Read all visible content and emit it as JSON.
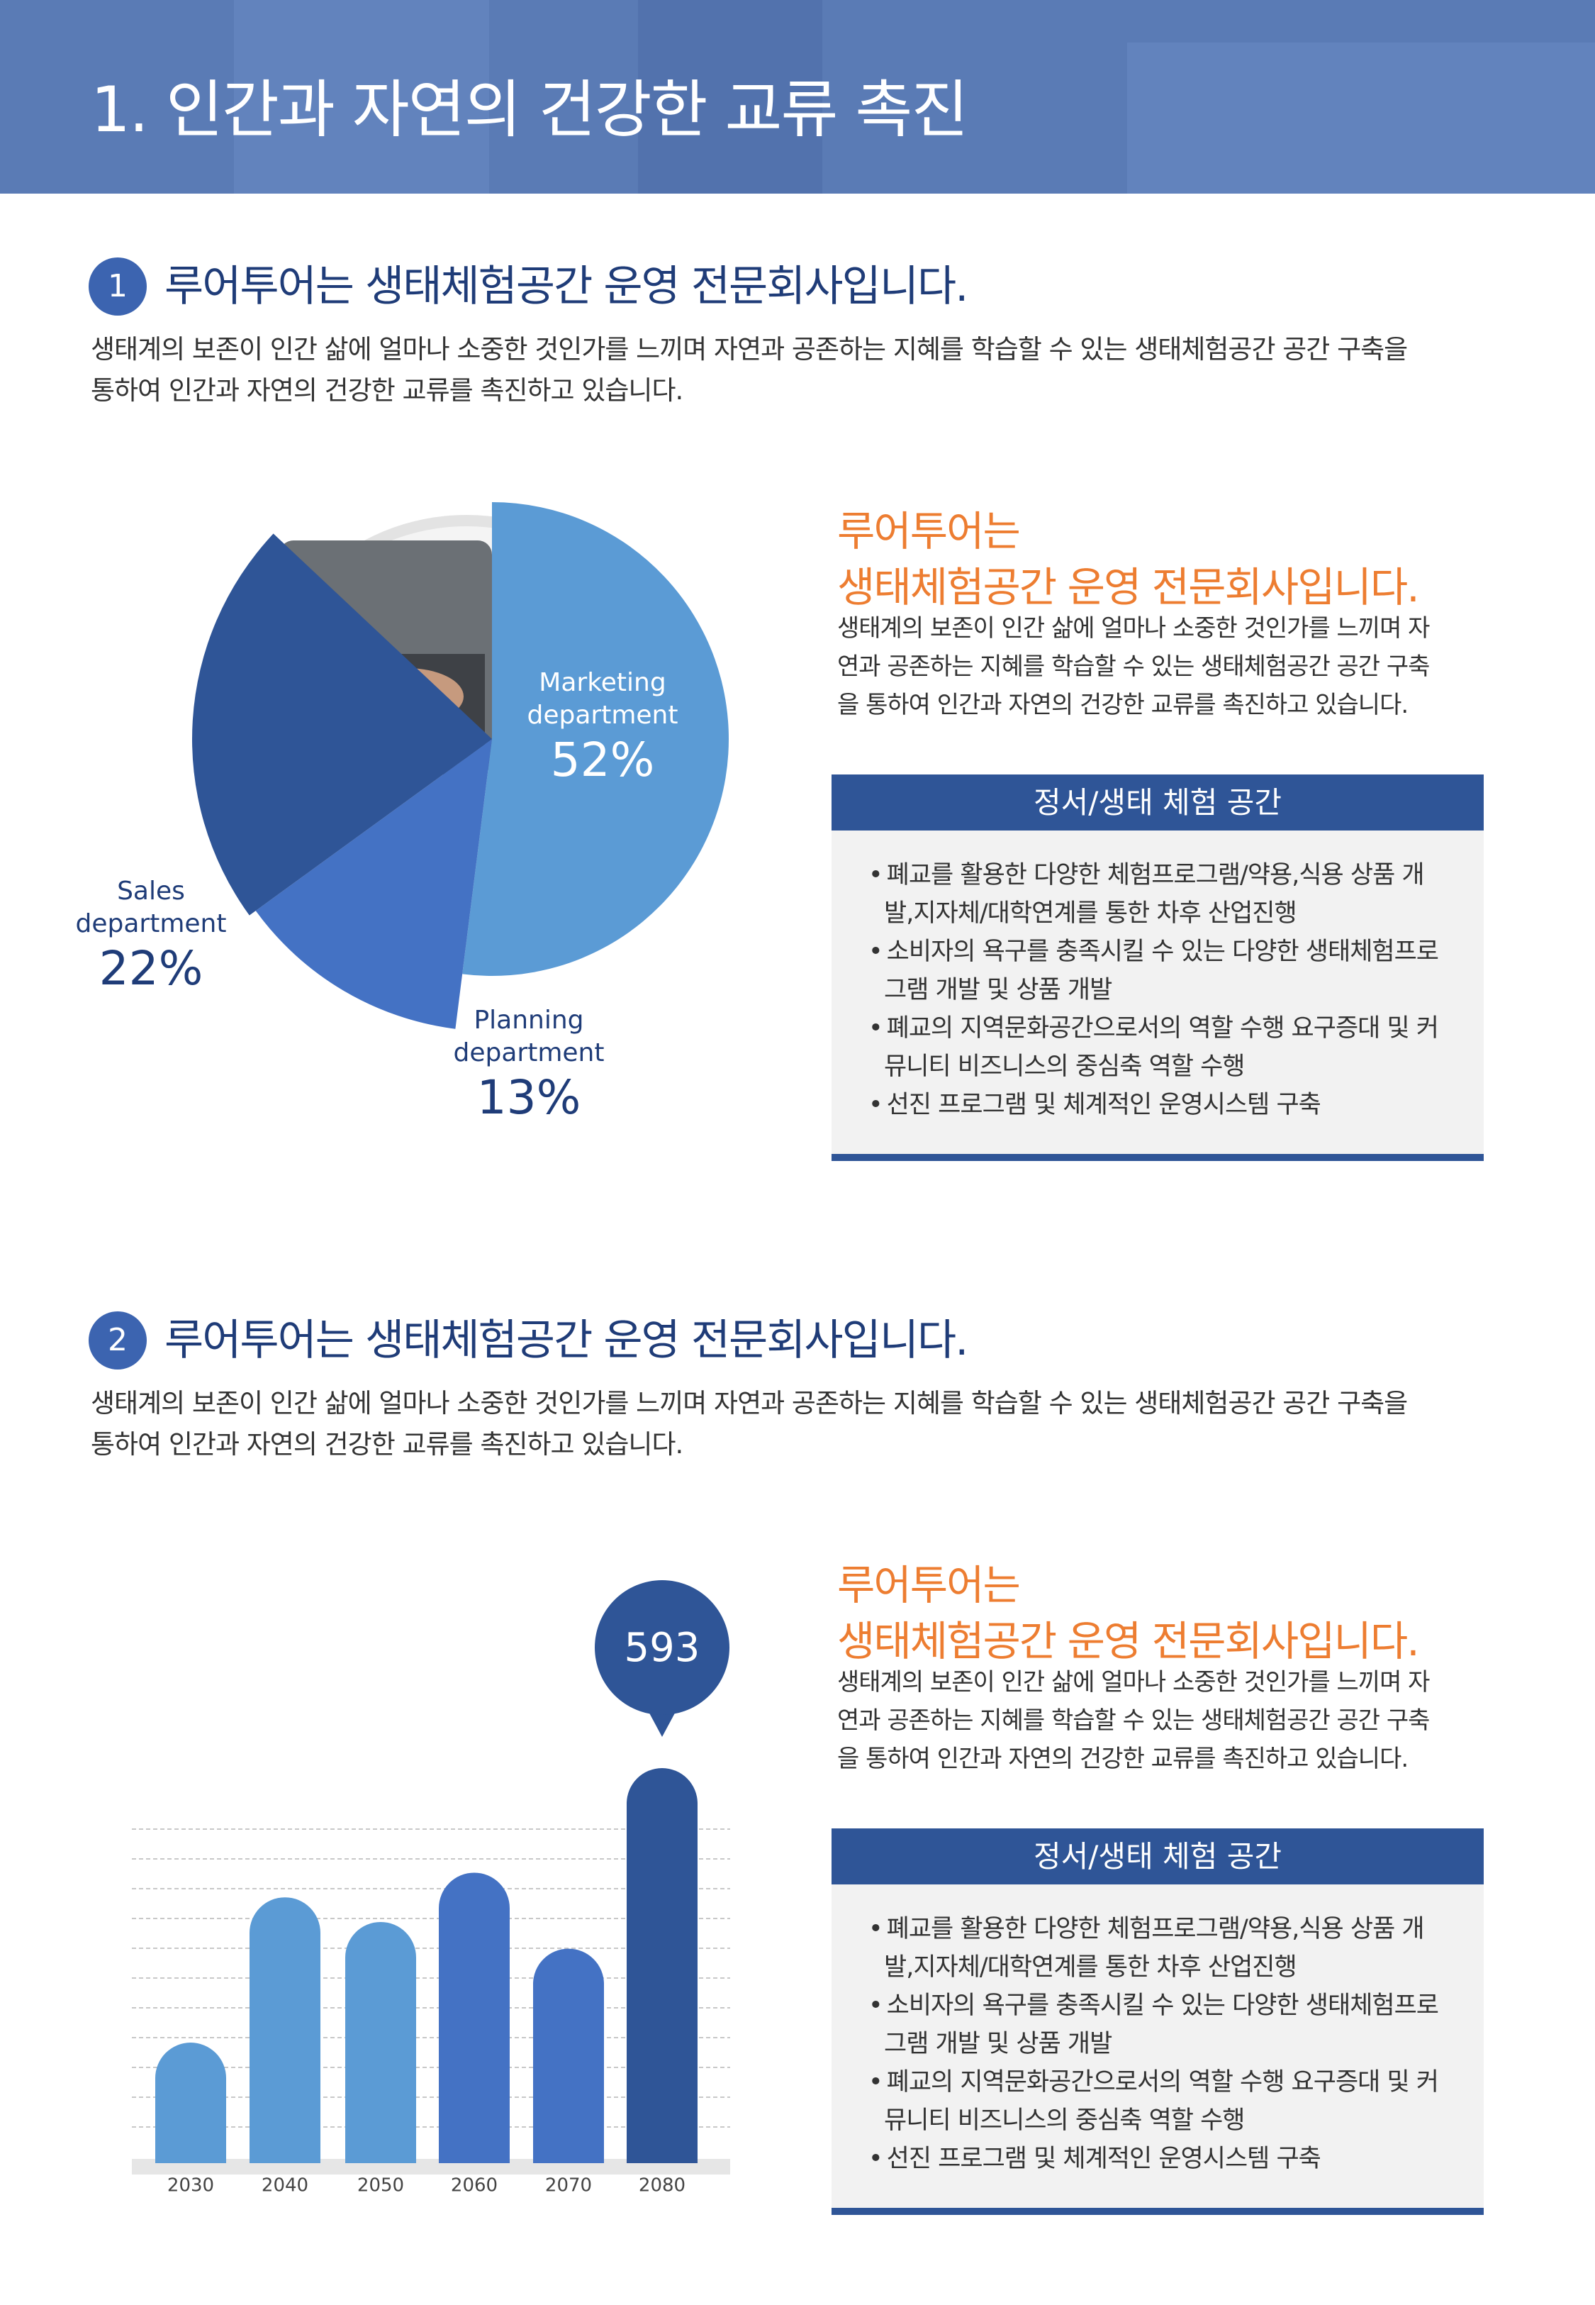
{
  "header": {
    "title": "1. 인간과 자연의 건강한 교류 촉진"
  },
  "sections": [
    {
      "number": "1",
      "heading": "루어투어는 생태체험공간 운영 전문회사입니다.",
      "paragraph": "생태계의 보존이 인간 삶에 얼마나 소중한 것인가를 느끼며 자연과 공존하는 지혜를 학습할 수 있는 생태체험공간 공간 구축을 통하여 인간과 자연의 건강한 교류를 촉진하고 있습니다.",
      "side_heading": [
        "루어투어는",
        "생태체험공간 운영 전문회사입니다."
      ],
      "side_paragraph": "생태계의 보존이 인간 삶에 얼마나 소중한 것인가를 느끼며 자연과 공존하는 지혜를 학습할 수 있는 생태체험공간 공간 구축을 통하여 인간과 자연의 건강한 교류를 촉진하고 있습니다.",
      "box_title": "정서/생태 체험 공간",
      "items": [
        "폐교를 활용한 다양한 체험프로그램/약용,식용 상품 개발,지자체/대학연계를 통한 차후 산업진행",
        "소비자의 욕구를 충족시킬 수 있는 다양한 생태체험프로그램 개발 및 상품 개발",
        "폐교의 지역문화공간으로서의 역할 수행 요구증대 및 커뮤니티 비즈니스의 중심축 역할 수행",
        "선진 프로그램 및 체계적인 운영시스템 구축"
      ]
    },
    {
      "number": "2",
      "heading": "루어투어는 생태체험공간 운영 전문회사입니다.",
      "paragraph": "생태계의 보존이 인간 삶에 얼마나 소중한 것인가를 느끼며 자연과 공존하는 지혜를 학습할 수 있는 생태체험공간 공간 구축을 통하여 인간과 자연의 건강한 교류를 촉진하고 있습니다.",
      "side_heading": [
        "루어투어는",
        "생태체험공간 운영 전문회사입니다."
      ],
      "side_paragraph": "생태계의 보존이 인간 삶에 얼마나 소중한 것인가를 느끼며 자연과 공존하는 지혜를 학습할 수 있는 생태체험공간 공간 구축을 통하여 인간과 자연의 건강한 교류를 촉진하고 있습니다.",
      "box_title": "정서/생태 체험 공간",
      "items": [
        "폐교를 활용한 다양한 체험프로그램/약용,식용 상품 개발,지자체/대학연계를 통한 차후 산업진행",
        "소비자의 욕구를 충족시킬 수 있는 다양한 생태체험프로그램 개발 및 상품 개발",
        "폐교의 지역문화공간으로서의 역할 수행 요구증대 및 커뮤니티 비즈니스의 중심축 역할 수행",
        "선진 프로그램 및 체계적인 운영시스템 구축"
      ]
    }
  ],
  "chart_data": [
    {
      "type": "pie",
      "categories": [
        "Marketing department",
        "Planning department",
        "Sales department"
      ],
      "values": [
        52,
        13,
        22
      ],
      "value_labels": [
        "52%",
        "13%",
        "22%"
      ],
      "colors": [
        "#5b9bd5",
        "#4472c4",
        "#2f5597"
      ]
    },
    {
      "type": "bar",
      "categories": [
        "2030",
        "2040",
        "2050",
        "2060",
        "2070",
        "2080"
      ],
      "values": [
        181,
        399,
        362,
        436,
        322,
        593
      ],
      "colors": [
        "#5b9bd5",
        "#5b9bd5",
        "#5b9bd5",
        "#4472c4",
        "#4472c4",
        "#2f5597"
      ]
    }
  ]
}
